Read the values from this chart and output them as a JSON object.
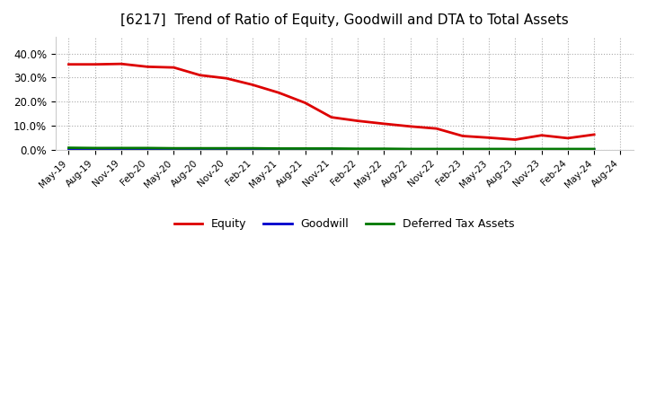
{
  "title": "[6217]  Trend of Ratio of Equity, Goodwill and DTA to Total Assets",
  "title_fontsize": 11,
  "background_color": "#ffffff",
  "plot_bg_color": "#ffffff",
  "grid_color": "#aaaaaa",
  "ylim": [
    0.0,
    0.47
  ],
  "yticks": [
    0.0,
    0.1,
    0.2,
    0.3,
    0.4
  ],
  "x_labels": [
    "May-19",
    "Aug-19",
    "Nov-19",
    "Feb-20",
    "May-20",
    "Aug-20",
    "Nov-20",
    "Feb-21",
    "May-21",
    "Aug-21",
    "Nov-21",
    "Feb-22",
    "May-22",
    "Aug-22",
    "Nov-22",
    "Feb-23",
    "May-23",
    "Aug-23",
    "Nov-23",
    "Feb-24",
    "May-24",
    "Aug-24"
  ],
  "equity": [
    0.355,
    0.355,
    0.357,
    0.345,
    0.342,
    0.31,
    0.297,
    0.27,
    0.237,
    0.195,
    0.135,
    0.12,
    0.108,
    0.097,
    0.088,
    0.057,
    0.05,
    0.042,
    0.06,
    0.048,
    0.063,
    null
  ],
  "goodwill": [
    0.002,
    0.002,
    0.002,
    0.002,
    0.001,
    0.001,
    0.001,
    0.001,
    0.001,
    0.001,
    0.001,
    0.001,
    0.001,
    0.001,
    0.001,
    0.001,
    0.001,
    0.001,
    0.001,
    0.001,
    0.001,
    null
  ],
  "dta": [
    0.008,
    0.007,
    0.007,
    0.007,
    0.006,
    0.006,
    0.006,
    0.006,
    0.005,
    0.005,
    0.005,
    0.004,
    0.004,
    0.003,
    0.003,
    0.003,
    0.003,
    0.003,
    0.003,
    0.003,
    0.003,
    null
  ],
  "equity_color": "#dd0000",
  "goodwill_color": "#0000cc",
  "dta_color": "#007700",
  "line_width": 2.0,
  "legend_labels": [
    "Equity",
    "Goodwill",
    "Deferred Tax Assets"
  ]
}
